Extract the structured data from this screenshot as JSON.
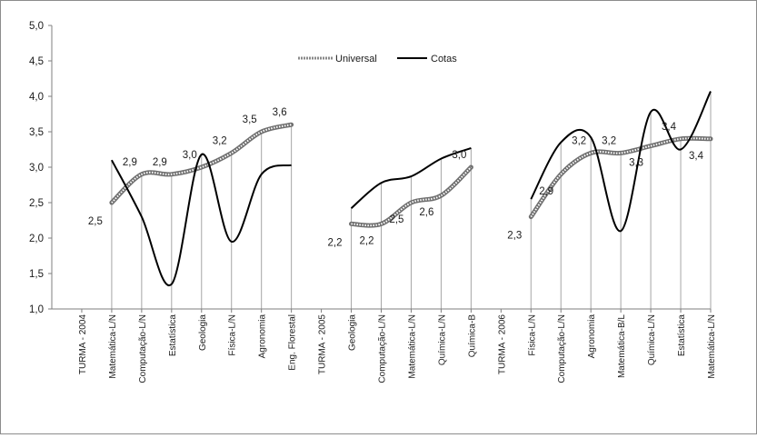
{
  "chart_data": {
    "type": "line",
    "categories": [
      "TURMA - 2004",
      "Matemática-L/N",
      "Computação-L/N",
      "Estatística",
      "Geologia",
      "Física-L/N",
      "Agronomia",
      "Eng. Florestal",
      "TURMA - 2005",
      "Geologia",
      "Computação-L/N",
      "Matemática-L/N",
      "Química-L/N",
      "Química-B",
      "TURMA - 2006",
      "Física-L/N",
      "Computação-L/N",
      "Agronomia",
      "Matemática-B/L",
      "Química-L/N",
      "Estatística",
      "Matemática-L/N"
    ],
    "series": [
      {
        "name": "Universal",
        "values": [
          null,
          2.5,
          2.9,
          2.9,
          3.0,
          3.2,
          3.5,
          3.6,
          null,
          2.2,
          2.2,
          2.5,
          2.6,
          3.0,
          null,
          2.3,
          2.9,
          3.2,
          3.2,
          3.3,
          3.4,
          3.4
        ]
      },
      {
        "name": "Cotas",
        "values": [
          null,
          3.1,
          2.3,
          1.35,
          3.18,
          1.95,
          2.9,
          3.03,
          null,
          2.42,
          2.78,
          2.87,
          3.12,
          3.27,
          null,
          2.55,
          3.35,
          3.42,
          2.1,
          3.78,
          3.25,
          4.07
        ]
      }
    ],
    "data_labels": [
      "",
      "2,5",
      "2,9",
      "2,9",
      "3,0",
      "3,2",
      "3,5",
      "3,6",
      "",
      "2,2",
      "2,2",
      "2,5",
      "2,6",
      "3,0",
      "",
      "2,3",
      "2,9",
      "3,2",
      "3,2",
      "3,3",
      "3,4",
      "3,4"
    ],
    "ylim": [
      1.0,
      5.0
    ],
    "yticks": [
      "1,0",
      "1,5",
      "2,0",
      "2,5",
      "3,0",
      "3,5",
      "4,0",
      "4,5",
      "5,0"
    ],
    "title": "",
    "xlabel": "",
    "ylabel": "",
    "grid": false,
    "legend_position": "top-center",
    "colors": {
      "universal": "#8a8a8a",
      "cotas": "#000000",
      "axis": "#7f7f7f"
    }
  }
}
